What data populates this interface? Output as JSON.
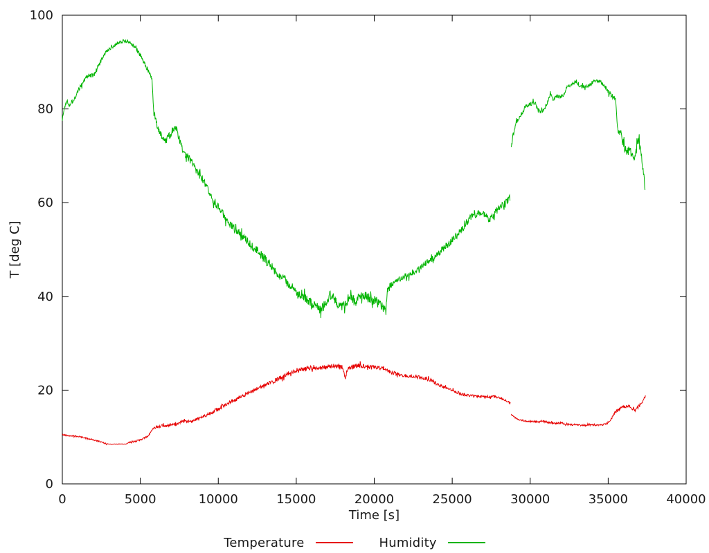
{
  "chart_data": {
    "type": "line",
    "title": "",
    "xlabel": "Time [s]",
    "ylabel": "T [deg C]",
    "xlim": [
      0,
      40000
    ],
    "ylim": [
      0,
      100
    ],
    "x_ticks": [
      0,
      5000,
      10000,
      15000,
      20000,
      25000,
      30000,
      35000,
      40000
    ],
    "y_ticks": [
      0,
      20,
      40,
      60,
      80,
      100
    ],
    "grid": false,
    "legend_position": "bottom-center",
    "axis_color": "#000000",
    "series": [
      {
        "name": "Temperature",
        "color": "#e60000",
        "segments": [
          [
            [
              0,
              10.5
            ],
            [
              400,
              10.3
            ],
            [
              800,
              10.2
            ],
            [
              1200,
              10.0
            ],
            [
              1600,
              9.7
            ],
            [
              2000,
              9.4
            ],
            [
              2400,
              9.0
            ],
            [
              2800,
              8.6
            ],
            [
              3000,
              8.5
            ],
            [
              4100,
              8.5
            ],
            [
              4300,
              8.9
            ],
            [
              4700,
              9.1
            ],
            [
              5100,
              9.5
            ],
            [
              5500,
              10.2
            ],
            [
              5700,
              11.2
            ],
            [
              5900,
              12.1
            ],
            [
              6300,
              12.3
            ],
            [
              6800,
              12.4
            ],
            [
              7300,
              12.7
            ],
            [
              7600,
              13.2
            ],
            [
              8100,
              13.3
            ],
            [
              8600,
              13.7
            ],
            [
              9100,
              14.5
            ],
            [
              9600,
              15.3
            ],
            [
              10100,
              16.2
            ],
            [
              10600,
              17.2
            ],
            [
              11100,
              18.0
            ],
            [
              11600,
              18.8
            ],
            [
              12100,
              19.6
            ],
            [
              12600,
              20.5
            ],
            [
              13100,
              21.2
            ],
            [
              13600,
              22.0
            ],
            [
              14100,
              22.8
            ],
            [
              14600,
              23.7
            ],
            [
              15100,
              24.2
            ],
            [
              15600,
              24.5
            ],
            [
              16100,
              24.9
            ],
            [
              16600,
              24.7
            ],
            [
              17100,
              25.0
            ],
            [
              17600,
              25.2
            ],
            [
              18000,
              24.8
            ],
            [
              18120,
              22.3
            ],
            [
              18300,
              24.7
            ],
            [
              18800,
              25.2
            ],
            [
              19300,
              25.2
            ],
            [
              19800,
              24.9
            ],
            [
              20300,
              24.9
            ],
            [
              20700,
              24.4
            ],
            [
              21100,
              23.7
            ],
            [
              21600,
              23.3
            ],
            [
              22100,
              23.0
            ],
            [
              22600,
              22.9
            ],
            [
              23100,
              22.6
            ],
            [
              23600,
              22.2
            ],
            [
              24100,
              21.2
            ],
            [
              24600,
              20.4
            ],
            [
              25100,
              19.8
            ],
            [
              25600,
              19.2
            ],
            [
              26100,
              18.8
            ],
            [
              26600,
              18.7
            ],
            [
              27100,
              18.6
            ],
            [
              27600,
              18.6
            ],
            [
              28100,
              18.4
            ],
            [
              28500,
              17.7
            ],
            [
              28730,
              17.2
            ]
          ],
          [
            [
              28790,
              14.8
            ],
            [
              29000,
              14.2
            ],
            [
              29300,
              13.7
            ],
            [
              29700,
              13.4
            ],
            [
              30100,
              13.3
            ],
            [
              30500,
              13.2
            ],
            [
              30800,
              13.4
            ],
            [
              31200,
              13.1
            ],
            [
              31600,
              12.9
            ],
            [
              32000,
              13.0
            ],
            [
              32400,
              12.7
            ],
            [
              32900,
              12.6
            ],
            [
              33400,
              12.5
            ],
            [
              33900,
              12.6
            ],
            [
              34400,
              12.5
            ],
            [
              34800,
              12.7
            ],
            [
              35100,
              13.2
            ],
            [
              35300,
              14.6
            ],
            [
              35500,
              15.4
            ],
            [
              35700,
              15.9
            ],
            [
              35900,
              16.5
            ],
            [
              36100,
              16.3
            ],
            [
              36300,
              16.6
            ],
            [
              36500,
              16.2
            ],
            [
              36750,
              15.8
            ],
            [
              36900,
              16.3
            ],
            [
              37100,
              17.0
            ],
            [
              37250,
              18.0
            ],
            [
              37400,
              19.2
            ]
          ]
        ],
        "noise_profile": [
          [
            0,
            0.15
          ],
          [
            2850,
            0.04
          ],
          [
            4200,
            0.18
          ],
          [
            5900,
            0.3
          ],
          [
            9000,
            0.4
          ],
          [
            13500,
            0.5
          ],
          [
            20500,
            0.35
          ],
          [
            24000,
            0.3
          ],
          [
            26500,
            0.25
          ],
          [
            28790,
            0.15
          ],
          [
            29800,
            0.2
          ],
          [
            35100,
            0.3
          ],
          [
            36000,
            0.35
          ]
        ],
        "noise_seed": 42
      },
      {
        "name": "Humidity",
        "color": "#00b400",
        "segments": [
          [
            [
              0,
              77.8
            ],
            [
              150,
              80.5
            ],
            [
              300,
              81.8
            ],
            [
              450,
              81.0
            ],
            [
              650,
              81.6
            ],
            [
              900,
              83.0
            ],
            [
              1200,
              85.0
            ],
            [
              1500,
              86.6
            ],
            [
              1800,
              87.3
            ],
            [
              2000,
              87.0
            ],
            [
              2300,
              89.0
            ],
            [
              2600,
              91.0
            ],
            [
              2900,
              92.5
            ],
            [
              3200,
              93.3
            ],
            [
              3500,
              94.0
            ],
            [
              3800,
              94.5
            ],
            [
              4100,
              94.5
            ],
            [
              4400,
              94.0
            ],
            [
              4700,
              93.0
            ],
            [
              5000,
              91.5
            ],
            [
              5300,
              89.5
            ],
            [
              5600,
              87.6
            ],
            [
              5750,
              86.2
            ],
            [
              5850,
              79.8
            ],
            [
              6000,
              77.2
            ],
            [
              6200,
              75.5
            ],
            [
              6400,
              74.0
            ],
            [
              6600,
              72.8
            ],
            [
              6800,
              74.0
            ],
            [
              7000,
              75.0
            ],
            [
              7200,
              76.3
            ],
            [
              7400,
              75.0
            ],
            [
              7600,
              72.2
            ],
            [
              7800,
              70.6
            ],
            [
              8000,
              70.0
            ],
            [
              8300,
              68.5
            ],
            [
              8600,
              67.0
            ],
            [
              8900,
              65.5
            ],
            [
              9200,
              63.5
            ],
            [
              9500,
              61.5
            ],
            [
              9800,
              60.0
            ],
            [
              10100,
              58.5
            ],
            [
              10400,
              57.0
            ],
            [
              10700,
              55.5
            ],
            [
              11000,
              54.5
            ],
            [
              11300,
              53.5
            ],
            [
              11700,
              52.3
            ],
            [
              12100,
              51.3
            ],
            [
              12500,
              49.8
            ],
            [
              12900,
              48.3
            ],
            [
              13300,
              46.8
            ],
            [
              13700,
              45.3
            ],
            [
              14100,
              44.0
            ],
            [
              14500,
              42.8
            ],
            [
              14900,
              41.2
            ],
            [
              15300,
              39.8
            ],
            [
              15700,
              39.2
            ],
            [
              16100,
              38.6
            ],
            [
              16500,
              37.2
            ],
            [
              16800,
              38.0
            ],
            [
              17000,
              39.5
            ],
            [
              17300,
              40.8
            ],
            [
              17600,
              38.5
            ],
            [
              17900,
              38.0
            ],
            [
              18200,
              39.0
            ],
            [
              18500,
              40.3
            ],
            [
              18800,
              39.0
            ],
            [
              19100,
              40.0
            ],
            [
              19400,
              40.4
            ],
            [
              19700,
              39.5
            ],
            [
              20000,
              39.0
            ],
            [
              20300,
              38.6
            ],
            [
              20600,
              37.2
            ],
            [
              20760,
              36.6
            ],
            [
              20820,
              41.5
            ],
            [
              21100,
              42.5
            ],
            [
              21500,
              43.4
            ],
            [
              22000,
              44.4
            ],
            [
              22650,
              45.4
            ],
            [
              23300,
              47.0
            ],
            [
              24000,
              48.6
            ],
            [
              24500,
              50.5
            ],
            [
              25000,
              52.0
            ],
            [
              25600,
              54.2
            ],
            [
              26200,
              57.0
            ],
            [
              26600,
              57.6
            ],
            [
              27000,
              57.8
            ],
            [
              27350,
              56.3
            ],
            [
              27650,
              57.5
            ],
            [
              28000,
              58.8
            ],
            [
              28400,
              59.8
            ],
            [
              28730,
              61.3
            ]
          ],
          [
            [
              28790,
              71.5
            ],
            [
              28900,
              74.5
            ],
            [
              29100,
              77.0
            ],
            [
              29400,
              78.6
            ],
            [
              29700,
              80.5
            ],
            [
              30000,
              81.0
            ],
            [
              30300,
              81.3
            ],
            [
              30650,
              79.4
            ],
            [
              30950,
              80.2
            ],
            [
              31150,
              82.0
            ],
            [
              31300,
              83.4
            ],
            [
              31450,
              82.2
            ],
            [
              31750,
              82.5
            ],
            [
              32050,
              82.7
            ],
            [
              32350,
              84.5
            ],
            [
              32650,
              85.3
            ],
            [
              32950,
              85.9
            ],
            [
              33250,
              84.7
            ],
            [
              33550,
              84.8
            ],
            [
              33850,
              85.2
            ],
            [
              34150,
              86.0
            ],
            [
              34450,
              85.9
            ],
            [
              34750,
              85.0
            ],
            [
              35050,
              83.5
            ],
            [
              35350,
              82.4
            ],
            [
              35480,
              82.0
            ],
            [
              35580,
              76.5
            ],
            [
              35800,
              74.6
            ],
            [
              36000,
              72.2
            ],
            [
              36200,
              70.6
            ],
            [
              36400,
              71.5
            ],
            [
              36600,
              69.6
            ],
            [
              36800,
              71.0
            ],
            [
              36950,
              73.3
            ],
            [
              37100,
              70.5
            ],
            [
              37250,
              67.0
            ],
            [
              37380,
              62.3
            ]
          ]
        ],
        "noise_profile": [
          [
            0,
            0.5
          ],
          [
            1500,
            0.55
          ],
          [
            2600,
            0.45
          ],
          [
            5900,
            0.8
          ],
          [
            8000,
            0.9
          ],
          [
            12000,
            1.0
          ],
          [
            15300,
            1.1
          ],
          [
            21000,
            0.7
          ],
          [
            24000,
            0.8
          ],
          [
            26500,
            0.8
          ],
          [
            28790,
            0.45
          ],
          [
            30000,
            0.5
          ],
          [
            32300,
            0.4
          ],
          [
            34800,
            0.5
          ],
          [
            35600,
            1.1
          ],
          [
            37000,
            0.9
          ]
        ],
        "noise_seed": 1337
      }
    ]
  },
  "legend": {
    "items": [
      {
        "label": "Temperature"
      },
      {
        "label": "Humidity"
      }
    ]
  }
}
